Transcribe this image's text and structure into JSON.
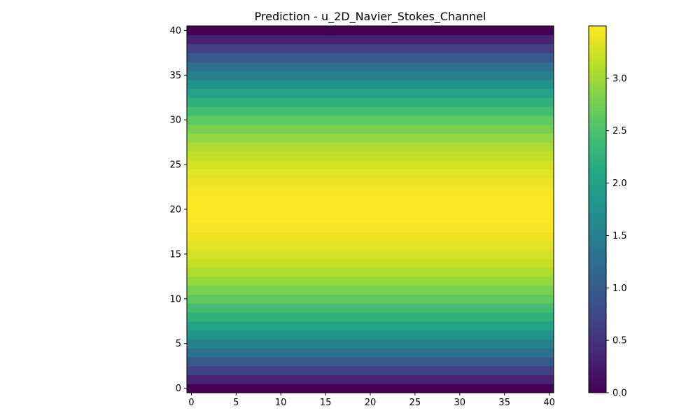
{
  "chart_data": {
    "type": "heatmap",
    "title": "Prediction - u_2D_Navier_Stokes_Channel",
    "xlabel": "",
    "ylabel": "",
    "x_range": [
      -0.5,
      40.5
    ],
    "y_range": [
      -0.5,
      40.5
    ],
    "x_ticks": [
      0,
      5,
      10,
      15,
      20,
      25,
      30,
      35,
      40
    ],
    "y_ticks": [
      0,
      5,
      10,
      15,
      20,
      25,
      30,
      35,
      40
    ],
    "grid": false,
    "colormap": "viridis",
    "value_description": "parabolic channel profile u(y) = 3.5 * (1 - ((y - 20)/20)^2), constant along x",
    "rows_y": [
      0,
      1,
      2,
      3,
      4,
      5,
      6,
      7,
      8,
      9,
      10,
      11,
      12,
      13,
      14,
      15,
      16,
      17,
      18,
      19,
      20,
      21,
      22,
      23,
      24,
      25,
      26,
      27,
      28,
      29,
      30,
      31,
      32,
      33,
      34,
      35,
      36,
      37,
      38,
      39,
      40
    ],
    "row_values": [
      0.0,
      0.341,
      0.665,
      0.971,
      1.26,
      1.531,
      1.785,
      2.021,
      2.24,
      2.441,
      2.625,
      2.791,
      2.94,
      3.071,
      3.185,
      3.281,
      3.36,
      3.421,
      3.465,
      3.491,
      3.5,
      3.491,
      3.465,
      3.421,
      3.36,
      3.281,
      3.185,
      3.071,
      2.94,
      2.791,
      2.625,
      2.441,
      2.24,
      2.021,
      1.785,
      1.531,
      1.26,
      0.971,
      0.665,
      0.341,
      0.0
    ],
    "colorbar": {
      "min": 0.0,
      "max": 3.5,
      "ticks": [
        0.0,
        0.5,
        1.0,
        1.5,
        2.0,
        2.5,
        3.0
      ],
      "tick_labels": [
        "0.0",
        "0.5",
        "1.0",
        "1.5",
        "2.0",
        "2.5",
        "3.0"
      ]
    }
  },
  "x_tick_labels": [
    "0",
    "5",
    "10",
    "15",
    "20",
    "25",
    "30",
    "35",
    "40"
  ],
  "y_tick_labels": [
    "0",
    "5",
    "10",
    "15",
    "20",
    "25",
    "30",
    "35",
    "40"
  ]
}
